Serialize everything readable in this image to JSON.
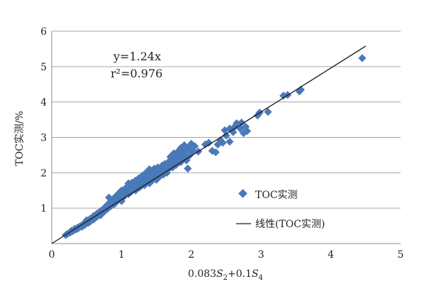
{
  "chart_data": {
    "type": "scatter",
    "xlabel": {
      "prefix": "0.083",
      "var1": "S",
      "sub1": "2",
      "mid": "+0.1",
      "var2": "S",
      "sub2": "4"
    },
    "ylabel": "TOC实测/%",
    "xlim": [
      0,
      5
    ],
    "ylim": [
      0,
      6
    ],
    "x_ticks": [
      "0",
      "1",
      "2",
      "3",
      "4",
      "5"
    ],
    "y_ticks": [
      "1",
      "2",
      "3",
      "4",
      "5",
      "6"
    ],
    "grid": "horizontal",
    "annotation": {
      "line1": "y=1.24x",
      "line2": "r²=0.976"
    },
    "legend": {
      "position": "bottom-right",
      "scatter_label": "TOC实测",
      "line_label": "线性(TOC实测)"
    },
    "colors": {
      "points": "#4a79b9",
      "trendline": "#1a1a1a",
      "grid": "#a6a6a6"
    },
    "trendline": {
      "slope": 1.24,
      "intercept": 0,
      "x_range": [
        0,
        4.5
      ]
    },
    "series": [
      {
        "name": "TOC实测",
        "points": [
          [
            0.2,
            0.24
          ],
          [
            0.22,
            0.27
          ],
          [
            0.25,
            0.3
          ],
          [
            0.27,
            0.32
          ],
          [
            0.28,
            0.36
          ],
          [
            0.3,
            0.35
          ],
          [
            0.32,
            0.38
          ],
          [
            0.33,
            0.42
          ],
          [
            0.35,
            0.4
          ],
          [
            0.37,
            0.45
          ],
          [
            0.38,
            0.43
          ],
          [
            0.4,
            0.48
          ],
          [
            0.42,
            0.5
          ],
          [
            0.43,
            0.47
          ],
          [
            0.45,
            0.55
          ],
          [
            0.47,
            0.52
          ],
          [
            0.48,
            0.58
          ],
          [
            0.5,
            0.6
          ],
          [
            0.5,
            0.66
          ],
          [
            0.52,
            0.58
          ],
          [
            0.53,
            0.64
          ],
          [
            0.55,
            0.62
          ],
          [
            0.55,
            0.7
          ],
          [
            0.57,
            0.66
          ],
          [
            0.58,
            0.72
          ],
          [
            0.6,
            0.68
          ],
          [
            0.6,
            0.78
          ],
          [
            0.62,
            0.74
          ],
          [
            0.63,
            0.8
          ],
          [
            0.65,
            0.76
          ],
          [
            0.65,
            0.85
          ],
          [
            0.67,
            0.82
          ],
          [
            0.68,
            0.88
          ],
          [
            0.7,
            0.8
          ],
          [
            0.7,
            0.92
          ],
          [
            0.72,
            0.86
          ],
          [
            0.73,
            0.95
          ],
          [
            0.75,
            0.9
          ],
          [
            0.75,
            1.0
          ],
          [
            0.77,
            0.94
          ],
          [
            0.78,
            1.05
          ],
          [
            0.8,
            0.98
          ],
          [
            0.8,
            1.1
          ],
          [
            0.82,
            1.02
          ],
          [
            0.82,
            1.3
          ],
          [
            0.83,
            1.14
          ],
          [
            0.85,
            1.06
          ],
          [
            0.85,
            1.2
          ],
          [
            0.87,
            1.1
          ],
          [
            0.88,
            1.25
          ],
          [
            0.9,
            1.12
          ],
          [
            0.9,
            1.3
          ],
          [
            0.92,
            1.18
          ],
          [
            0.93,
            1.35
          ],
          [
            0.95,
            1.22
          ],
          [
            0.95,
            1.4
          ],
          [
            0.97,
            1.28
          ],
          [
            0.98,
            1.45
          ],
          [
            1.0,
            1.2
          ],
          [
            1.0,
            1.35
          ],
          [
            1.0,
            1.5
          ],
          [
            1.02,
            1.3
          ],
          [
            1.03,
            1.42
          ],
          [
            1.05,
            1.55
          ],
          [
            1.05,
            1.38
          ],
          [
            1.07,
            1.48
          ],
          [
            1.08,
            1.6
          ],
          [
            1.1,
            1.4
          ],
          [
            1.1,
            1.7
          ],
          [
            1.12,
            1.52
          ],
          [
            1.13,
            1.45
          ],
          [
            1.15,
            1.62
          ],
          [
            1.15,
            1.72
          ],
          [
            1.17,
            1.55
          ],
          [
            1.18,
            1.68
          ],
          [
            1.2,
            1.5
          ],
          [
            1.2,
            1.78
          ],
          [
            1.22,
            1.62
          ],
          [
            1.23,
            1.72
          ],
          [
            1.25,
            1.58
          ],
          [
            1.25,
            1.85
          ],
          [
            1.27,
            1.7
          ],
          [
            1.28,
            1.62
          ],
          [
            1.3,
            1.8
          ],
          [
            1.3,
            1.92
          ],
          [
            1.32,
            1.75
          ],
          [
            1.33,
            1.65
          ],
          [
            1.35,
            1.88
          ],
          [
            1.35,
            2.0
          ],
          [
            1.37,
            1.78
          ],
          [
            1.38,
            1.95
          ],
          [
            1.4,
            1.7
          ],
          [
            1.4,
            1.85
          ],
          [
            1.4,
            2.1
          ],
          [
            1.42,
            1.92
          ],
          [
            1.43,
            2.05
          ],
          [
            1.45,
            1.8
          ],
          [
            1.45,
            1.98
          ],
          [
            1.47,
            2.12
          ],
          [
            1.48,
            1.88
          ],
          [
            1.5,
            2.02
          ],
          [
            1.5,
            1.8
          ],
          [
            1.52,
            2.15
          ],
          [
            1.53,
            1.95
          ],
          [
            1.55,
            2.08
          ],
          [
            1.55,
            1.9
          ],
          [
            1.57,
            2.0
          ],
          [
            1.58,
            2.2
          ],
          [
            1.6,
            1.95
          ],
          [
            1.6,
            2.1
          ],
          [
            1.62,
            2.25
          ],
          [
            1.63,
            2.05
          ],
          [
            1.65,
            2.18
          ],
          [
            1.65,
            2.0
          ],
          [
            1.67,
            2.3
          ],
          [
            1.68,
            2.12
          ],
          [
            1.7,
            2.45
          ],
          [
            1.7,
            2.2
          ],
          [
            1.72,
            2.35
          ],
          [
            1.73,
            2.15
          ],
          [
            1.75,
            2.55
          ],
          [
            1.75,
            2.28
          ],
          [
            1.77,
            2.4
          ],
          [
            1.78,
            2.22
          ],
          [
            1.8,
            2.5
          ],
          [
            1.8,
            2.35
          ],
          [
            1.82,
            2.62
          ],
          [
            1.83,
            2.45
          ],
          [
            1.85,
            2.3
          ],
          [
            1.85,
            2.7
          ],
          [
            1.87,
            2.55
          ],
          [
            1.88,
            2.4
          ],
          [
            1.9,
            2.78
          ],
          [
            1.9,
            2.5
          ],
          [
            1.92,
            2.62
          ],
          [
            1.93,
            2.35
          ],
          [
            1.95,
            2.7
          ],
          [
            1.95,
            2.12
          ],
          [
            1.97,
            2.48
          ],
          [
            2.0,
            2.55
          ],
          [
            2.0,
            2.82
          ],
          [
            2.02,
            2.62
          ],
          [
            2.05,
            2.75
          ],
          [
            2.1,
            2.6
          ],
          [
            2.2,
            2.8
          ],
          [
            2.25,
            2.85
          ],
          [
            2.3,
            2.62
          ],
          [
            2.35,
            2.58
          ],
          [
            2.38,
            2.8
          ],
          [
            2.42,
            2.92
          ],
          [
            2.45,
            2.85
          ],
          [
            2.48,
            3.2
          ],
          [
            2.5,
            3.05
          ],
          [
            2.55,
            2.88
          ],
          [
            2.55,
            3.25
          ],
          [
            2.6,
            3.15
          ],
          [
            2.62,
            3.3
          ],
          [
            2.65,
            3.4
          ],
          [
            2.7,
            3.25
          ],
          [
            2.72,
            3.42
          ],
          [
            2.75,
            3.12
          ],
          [
            2.78,
            3.3
          ],
          [
            2.8,
            3.18
          ],
          [
            2.95,
            3.62
          ],
          [
            2.98,
            3.7
          ],
          [
            3.1,
            3.72
          ],
          [
            3.32,
            4.18
          ],
          [
            3.38,
            4.2
          ],
          [
            3.55,
            4.3
          ],
          [
            3.57,
            4.35
          ],
          [
            4.45,
            5.24
          ]
        ]
      }
    ]
  }
}
